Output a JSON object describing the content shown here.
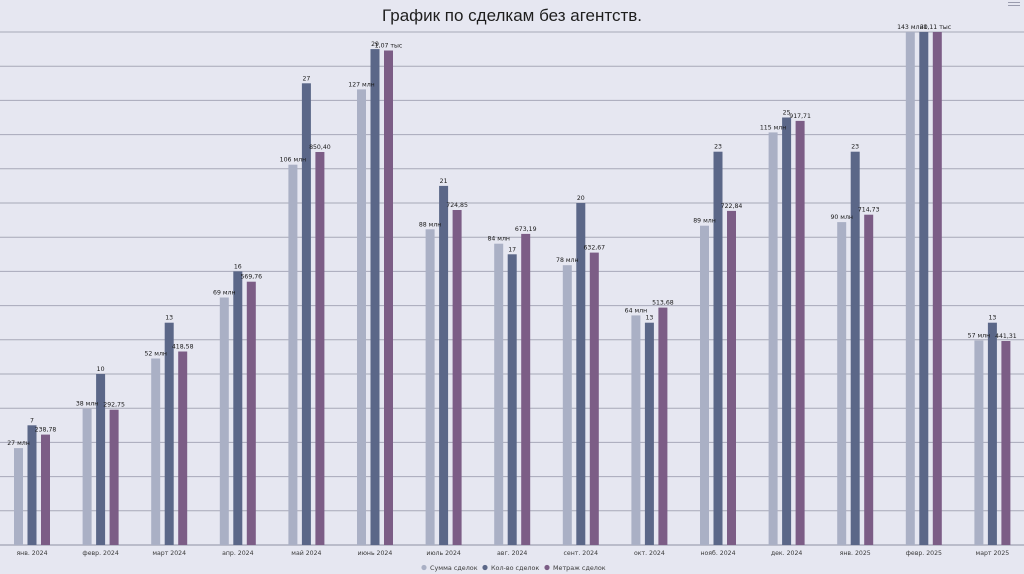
{
  "chart_data": {
    "type": "bar",
    "title": "График по сделкам без агентств.",
    "categories": [
      "янв. 2024",
      "февр. 2024",
      "март 2024",
      "апр. 2024",
      "май 2024",
      "июнь 2024",
      "июль 2024",
      "авг. 2024",
      "сент. 2024",
      "окт. 2024",
      "нояб. 2024",
      "дек. 2024",
      "янв. 2025",
      "февр. 2025",
      "март 2025"
    ],
    "series": [
      {
        "name": "Сумма сделок",
        "color": "#aab0c5",
        "values": [
          27,
          38,
          52,
          69,
          106,
          127,
          88,
          84,
          78,
          64,
          89,
          115,
          90,
          143,
          57
        ],
        "labels": [
          "27 млн",
          "38 млн",
          "52 млн",
          "69 млн",
          "106 млн",
          "127 млн",
          "88 млн",
          "84 млн",
          "78 млн",
          "64 млн",
          "89 млн",
          "115 млн",
          "90 млн",
          "143 млн",
          "57 млн"
        ]
      },
      {
        "name": "Кол-во сделок",
        "color": "#5b6788",
        "values": [
          7,
          10,
          13,
          16,
          27,
          29,
          21,
          17,
          20,
          13,
          23,
          25,
          23,
          30,
          13
        ],
        "labels": [
          "7",
          "10",
          "13",
          "16",
          "27",
          "29",
          "21",
          "17",
          "20",
          "13",
          "23",
          "25",
          "23",
          "30",
          "13"
        ]
      },
      {
        "name": "Метраж сделок",
        "color": "#7c5d86",
        "values": [
          238.78,
          292.75,
          418.58,
          569.76,
          850.4,
          1070,
          724.85,
          673.19,
          632.67,
          513.68,
          722.84,
          917.71,
          714.73,
          1110,
          441.31
        ],
        "labels": [
          "238,78",
          "292,75",
          "418,58",
          "569,76",
          "850,40",
          "1,07 тыс",
          "724,85",
          "673,19",
          "632,67",
          "513,68",
          "722,84",
          "917,71",
          "714,73",
          "1,11 тыс",
          "441,31"
        ]
      }
    ],
    "grid": true,
    "legend_position": "bottom"
  }
}
